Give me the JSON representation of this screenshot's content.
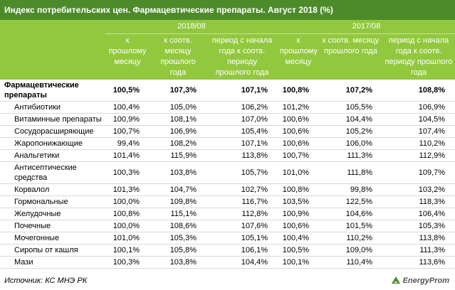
{
  "header": {
    "title": "Индекс потребительских цен. Фармацевтические препараты. Август 2018 (%)"
  },
  "table": {
    "groups": [
      "2018/08",
      "2017/08"
    ],
    "columns": [
      "к прошлому месяцу",
      "к соотв. месяцу прошлого года",
      "период с начала года к соотв. периоду прошлого года",
      "к прошлому месяцу",
      "к соотв. месяцу прошлого года",
      "период с начала года к соотв. периоду прошлого года"
    ],
    "rows": [
      [
        "Фармацевтические препараты",
        "100,5%",
        "107,3%",
        "107,1%",
        "100,8%",
        "107,2%",
        "108,8%"
      ],
      [
        "Антибиотики",
        "100,4%",
        "105,0%",
        "106,2%",
        "101,2%",
        "105,5%",
        "106,9%"
      ],
      [
        "Витаминные препараты",
        "100,9%",
        "108,1%",
        "107,0%",
        "100,6%",
        "104,4%",
        "104,5%"
      ],
      [
        "Сосудорасширяющие",
        "100,7%",
        "106,9%",
        "105,4%",
        "100,6%",
        "105,2%",
        "107,4%"
      ],
      [
        "Жаропонижающие",
        "99,4%",
        "108,2%",
        "107,1%",
        "100,6%",
        "106,0%",
        "110,2%"
      ],
      [
        "Анальгетики",
        "101,4%",
        "115,9%",
        "113,8%",
        "100,7%",
        "111,3%",
        "112,9%"
      ],
      [
        "Антисептические средства",
        "100,3%",
        "103,8%",
        "105,7%",
        "101,0%",
        "111,8%",
        "109,7%"
      ],
      [
        "Корвалол",
        "101,3%",
        "104,7%",
        "102,7%",
        "100,8%",
        "99,8%",
        "103,2%"
      ],
      [
        "Гормональные",
        "100,0%",
        "109,8%",
        "116,7%",
        "103,5%",
        "122,5%",
        "118,3%"
      ],
      [
        "Желудочные",
        "100,8%",
        "115,1%",
        "112,8%",
        "100,9%",
        "104,6%",
        "106,4%"
      ],
      [
        "Почечные",
        "100,0%",
        "108,6%",
        "107,6%",
        "100,6%",
        "101,5%",
        "105,3%"
      ],
      [
        "Мочегонные",
        "101,0%",
        "105,3%",
        "105,1%",
        "100,4%",
        "110,2%",
        "113,8%"
      ],
      [
        "Сиропы от кашля",
        "100,1%",
        "105,8%",
        "106,1%",
        "100,5%",
        "109,0%",
        "111,3%"
      ],
      [
        "Мази",
        "100,3%",
        "103,8%",
        "104,4%",
        "100,1%",
        "110,4%",
        "113,6%"
      ]
    ]
  },
  "footer": {
    "source": "Источник: КС МНЭ РК",
    "logo": "EnergyProm"
  }
}
